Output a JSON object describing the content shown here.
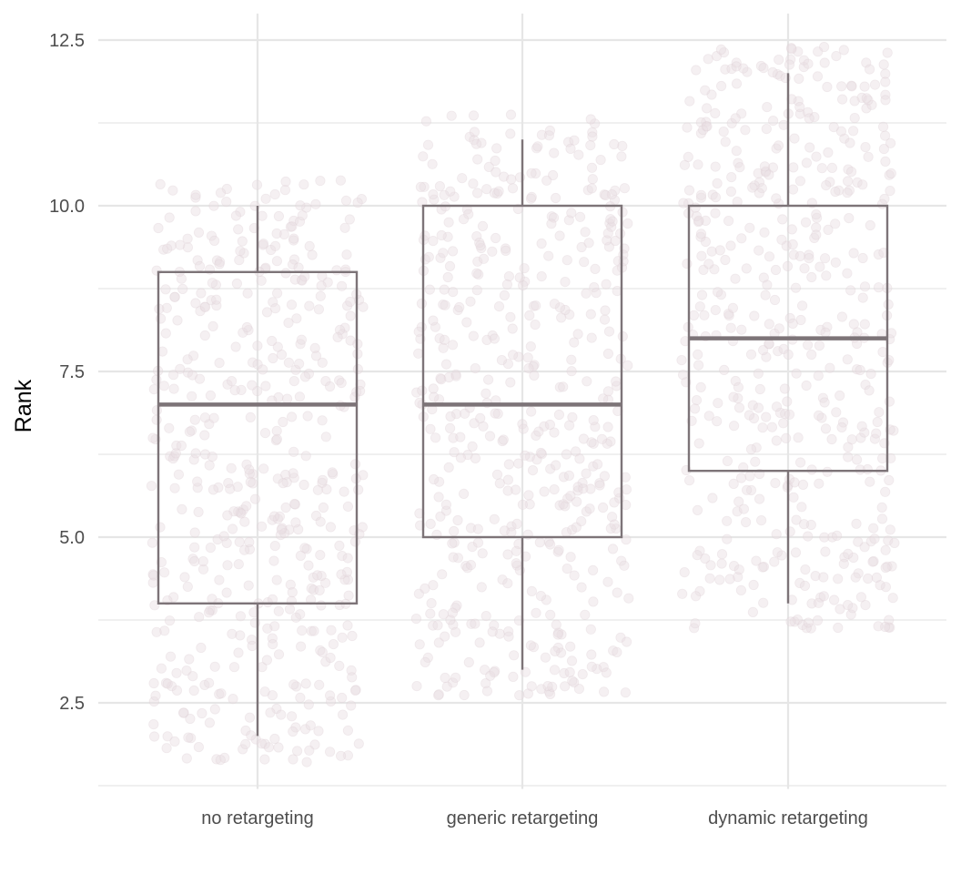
{
  "chart_data": {
    "type": "box",
    "xlabel": "",
    "ylabel": "Rank",
    "ylim": [
      1.2,
      12.9
    ],
    "y_ticks": [
      2.5,
      5.0,
      7.5,
      10.0,
      12.5
    ],
    "y_tick_labels": [
      "2.5",
      "5.0",
      "7.5",
      "10.0",
      "12.5"
    ],
    "y_minor_ticks": [
      1.25,
      3.75,
      6.25,
      8.75,
      11.25
    ],
    "grid": true,
    "categories": [
      "no retargeting",
      "generic retargeting",
      "dynamic retargeting"
    ],
    "boxes": [
      {
        "category": "no retargeting",
        "min": 2,
        "q1": 4,
        "median": 7,
        "q3": 9,
        "max": 10,
        "points_range": [
          1.6,
          10.4
        ]
      },
      {
        "category": "generic retargeting",
        "min": 3,
        "q1": 5,
        "median": 7,
        "q3": 10,
        "max": 11,
        "points_range": [
          2.6,
          11.4
        ]
      },
      {
        "category": "dynamic retargeting",
        "min": 4,
        "q1": 6,
        "median": 8,
        "q3": 10,
        "max": 12,
        "points_range": [
          3.6,
          12.4
        ]
      }
    ],
    "jitter_points_note_free": true,
    "colors": {
      "box": "#7d7478",
      "points": "#e9dde3",
      "grid": "#e6e6e6"
    }
  }
}
